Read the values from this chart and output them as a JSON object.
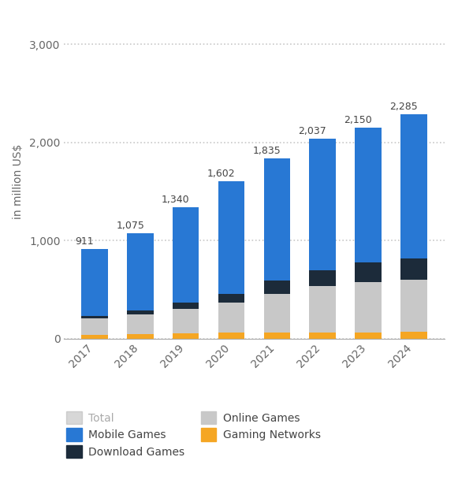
{
  "years": [
    "2017",
    "2018",
    "2019",
    "2020",
    "2021",
    "2022",
    "2023",
    "2024"
  ],
  "totals": [
    911,
    1075,
    1340,
    1602,
    1835,
    2037,
    2150,
    2285
  ],
  "gaming_networks": [
    40,
    50,
    55,
    60,
    60,
    65,
    65,
    70
  ],
  "online_games": [
    170,
    200,
    250,
    310,
    400,
    470,
    510,
    530
  ],
  "download_games": [
    20,
    40,
    60,
    90,
    130,
    165,
    200,
    215
  ],
  "colors": {
    "gaming_networks": "#f5a623",
    "online_games": "#c8c8c8",
    "download_games": "#1c2b3a",
    "mobile_games": "#2878d4",
    "total_legend": "#b0b0b0"
  },
  "ylabel": "in million US$",
  "ylim": [
    0,
    3200
  ],
  "yticks": [
    0,
    1000,
    2000,
    3000
  ],
  "background_color": "#ffffff",
  "grid_color": "#c8c8c8"
}
